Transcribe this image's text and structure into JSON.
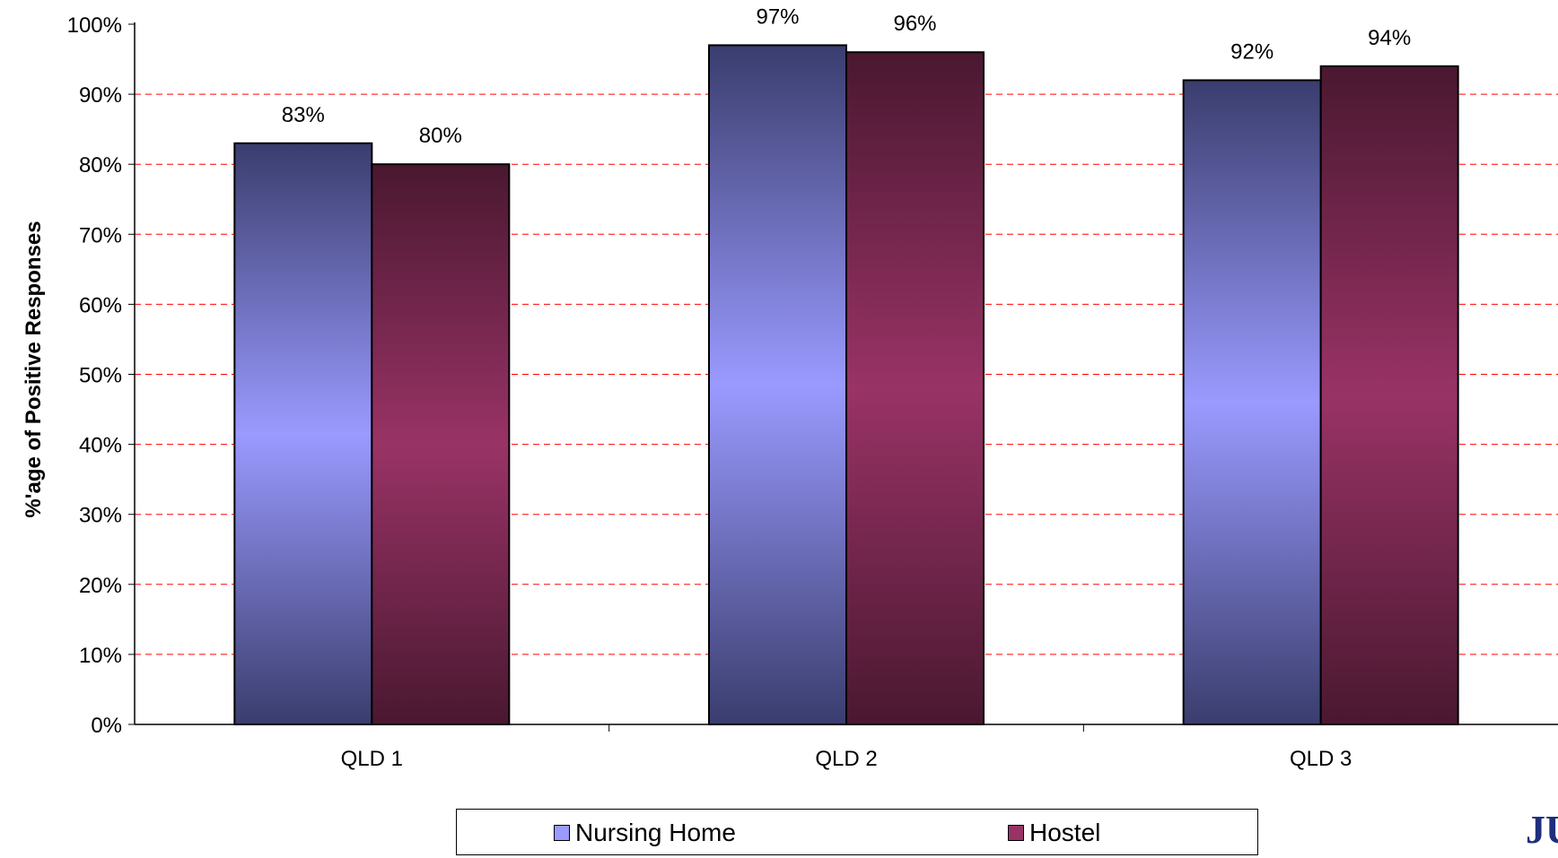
{
  "chart_data": {
    "type": "bar",
    "title": "",
    "xlabel": "",
    "ylabel": "%'age of Positive Responses",
    "ylim": [
      0,
      100
    ],
    "yticks": [
      "0%",
      "10%",
      "20%",
      "30%",
      "40%",
      "50%",
      "60%",
      "70%",
      "80%",
      "90%",
      "100%"
    ],
    "categories": [
      "QLD 1",
      "QLD 2",
      "QLD 3"
    ],
    "series": [
      {
        "name": "Nursing Home",
        "values": [
          83,
          97,
          92
        ],
        "labels": [
          "83%",
          "97%",
          "92%"
        ],
        "color": "#9a9aff"
      },
      {
        "name": "Hostel",
        "values": [
          80,
          96,
          94
        ],
        "labels": [
          "80%",
          "96%",
          "94%"
        ],
        "color": "#993366"
      }
    ],
    "grid": true,
    "grid_color": "#ff0000",
    "legend_position": "bottom"
  },
  "logo": {
    "text": "JU"
  }
}
